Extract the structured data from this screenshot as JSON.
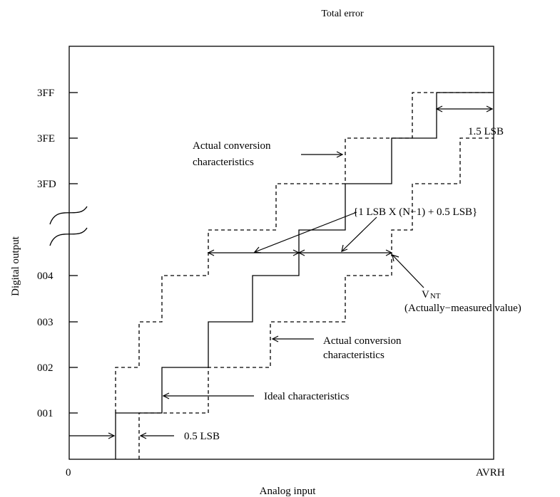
{
  "title": "Total error",
  "xlabel": "Analog input",
  "ylabel": "Digital output",
  "x_ticks": {
    "start": "0",
    "end": "AVRH"
  },
  "y_ticks": [
    "001",
    "002",
    "003",
    "004",
    "3FD",
    "3FE",
    "3FF"
  ],
  "annotations": {
    "half_lsb": "0.5 LSB",
    "one_half_lsb": "1.5 LSB",
    "ideal": "Ideal characteristics",
    "actual_upper_1": "Actual conversion",
    "actual_upper_2": "characteristics",
    "actual_lower_1": "Actual conversion",
    "actual_lower_2": "characteristics",
    "formula": "{1 LSB X (N−1) + 0.5 LSB}",
    "vnt_main": "V",
    "vnt_sub": "NT",
    "measured": "(Actually−measured value)"
  }
}
